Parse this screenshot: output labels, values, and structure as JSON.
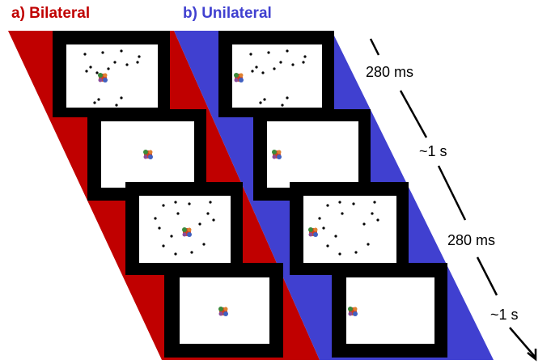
{
  "titles": {
    "bilateral": "a) Bilateral",
    "unilateral": "b) Unilateral"
  },
  "timeline": {
    "labels": [
      "280 ms",
      "~1 s",
      "280 ms",
      "~1 s"
    ]
  }
}
